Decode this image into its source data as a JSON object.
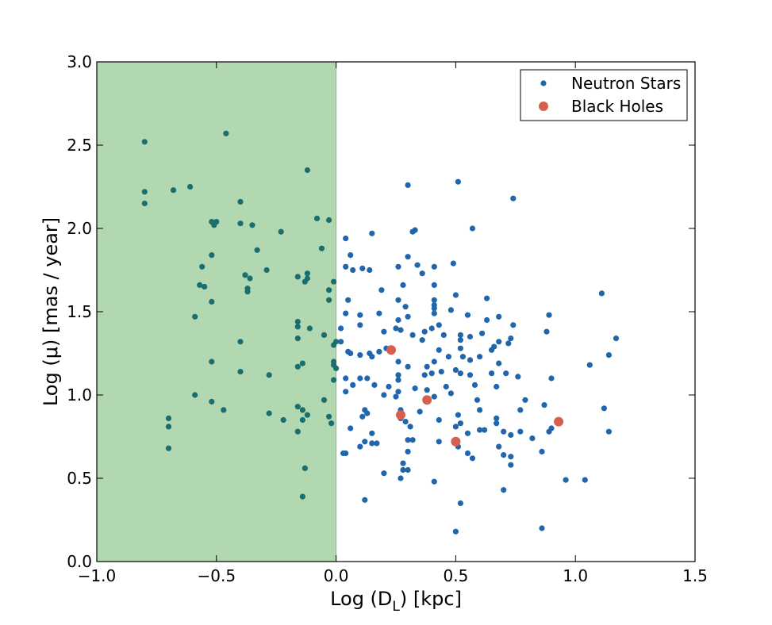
{
  "chart_data": {
    "type": "scatter",
    "title": "",
    "xlabel": "Log (D",
    "xlabel_sub": "L",
    "xlabel_tail": ") [kpc]",
    "ylabel": "Log (μ) [mas / year]",
    "xlim": [
      -1.0,
      1.5
    ],
    "ylim": [
      0.0,
      3.0
    ],
    "xticks": [
      -1.0,
      -0.5,
      0.0,
      0.5,
      1.0,
      1.5
    ],
    "xtick_labels": [
      "−1.0",
      "−0.5",
      "0.0",
      "0.5",
      "1.0",
      "1.5"
    ],
    "yticks": [
      0.0,
      0.5,
      1.0,
      1.5,
      2.0,
      2.5,
      3.0
    ],
    "ytick_labels": [
      "0.0",
      "0.5",
      "1.0",
      "1.5",
      "2.0",
      "2.5",
      "3.0"
    ],
    "grid": false,
    "legend_position": "top-right",
    "shaded_region": {
      "x": [
        -1.0,
        0.0
      ],
      "color": "#b2d8b2"
    },
    "colors": {
      "neutron": "#2166ac",
      "blackhole": "#d6604d",
      "shaded_point": "#1a6e6e"
    },
    "series": [
      {
        "name": "Neutron Stars",
        "marker": "circle-small",
        "points": [
          [
            -0.8,
            2.52
          ],
          [
            -0.8,
            2.22
          ],
          [
            -0.8,
            2.15
          ],
          [
            -0.68,
            2.23
          ],
          [
            -0.61,
            2.25
          ],
          [
            -0.46,
            2.57
          ],
          [
            -0.12,
            2.35
          ],
          [
            -0.4,
            2.16
          ],
          [
            -0.52,
            2.04
          ],
          [
            -0.5,
            2.04
          ],
          [
            -0.51,
            2.02
          ],
          [
            -0.4,
            2.03
          ],
          [
            -0.35,
            2.02
          ],
          [
            -0.23,
            1.98
          ],
          [
            -0.08,
            2.06
          ],
          [
            -0.03,
            2.05
          ],
          [
            -0.06,
            1.88
          ],
          [
            -0.33,
            1.87
          ],
          [
            -0.52,
            1.84
          ],
          [
            -0.56,
            1.77
          ],
          [
            -0.29,
            1.75
          ],
          [
            -0.38,
            1.72
          ],
          [
            -0.36,
            1.7
          ],
          [
            -0.16,
            1.71
          ],
          [
            -0.12,
            1.73
          ],
          [
            -0.12,
            1.7
          ],
          [
            -0.13,
            1.68
          ],
          [
            -0.01,
            1.68
          ],
          [
            -0.03,
            1.63
          ],
          [
            -0.57,
            1.66
          ],
          [
            -0.55,
            1.65
          ],
          [
            -0.37,
            1.64
          ],
          [
            -0.37,
            1.62
          ],
          [
            -0.03,
            1.57
          ],
          [
            -0.52,
            1.56
          ],
          [
            -0.59,
            1.47
          ],
          [
            -0.16,
            1.44
          ],
          [
            -0.16,
            1.41
          ],
          [
            -0.11,
            1.4
          ],
          [
            -0.16,
            1.34
          ],
          [
            -0.05,
            1.36
          ],
          [
            -0.4,
            1.32
          ],
          [
            -0.01,
            1.3
          ],
          [
            0.0,
            1.32
          ],
          [
            -0.52,
            1.2
          ],
          [
            -0.14,
            1.19
          ],
          [
            -0.16,
            1.17
          ],
          [
            -0.01,
            1.2
          ],
          [
            -0.01,
            1.18
          ],
          [
            -0.4,
            1.14
          ],
          [
            -0.28,
            1.12
          ],
          [
            0.0,
            1.16
          ],
          [
            -0.01,
            1.09
          ],
          [
            -0.59,
            1.0
          ],
          [
            -0.52,
            0.96
          ],
          [
            -0.47,
            0.91
          ],
          [
            -0.16,
            0.93
          ],
          [
            -0.14,
            0.91
          ],
          [
            -0.12,
            0.88
          ],
          [
            -0.14,
            0.85
          ],
          [
            -0.05,
            0.97
          ],
          [
            -0.03,
            0.87
          ],
          [
            -0.02,
            0.83
          ],
          [
            -0.22,
            0.85
          ],
          [
            -0.28,
            0.89
          ],
          [
            -0.7,
            0.86
          ],
          [
            -0.7,
            0.81
          ],
          [
            -0.7,
            0.68
          ],
          [
            -0.16,
            0.78
          ],
          [
            -0.13,
            0.56
          ],
          [
            -0.14,
            0.39
          ],
          [
            0.51,
            2.28
          ],
          [
            0.74,
            2.18
          ],
          [
            0.3,
            2.26
          ],
          [
            0.57,
            2.0
          ],
          [
            0.33,
            1.99
          ],
          [
            0.32,
            1.98
          ],
          [
            0.15,
            1.97
          ],
          [
            0.04,
            1.94
          ],
          [
            0.06,
            1.84
          ],
          [
            0.3,
            1.83
          ],
          [
            0.34,
            1.78
          ],
          [
            0.49,
            1.79
          ],
          [
            0.04,
            1.77
          ],
          [
            0.07,
            1.75
          ],
          [
            0.11,
            1.76
          ],
          [
            0.14,
            1.75
          ],
          [
            0.26,
            1.77
          ],
          [
            0.36,
            1.73
          ],
          [
            0.41,
            1.77
          ],
          [
            0.41,
            1.66
          ],
          [
            0.28,
            1.66
          ],
          [
            0.19,
            1.63
          ],
          [
            0.5,
            1.6
          ],
          [
            0.05,
            1.57
          ],
          [
            0.26,
            1.57
          ],
          [
            0.41,
            1.57
          ],
          [
            0.41,
            1.54
          ],
          [
            0.41,
            1.52
          ],
          [
            0.41,
            1.49
          ],
          [
            0.29,
            1.53
          ],
          [
            0.63,
            1.58
          ],
          [
            0.48,
            1.51
          ],
          [
            0.55,
            1.48
          ],
          [
            0.68,
            1.47
          ],
          [
            0.89,
            1.48
          ],
          [
            0.04,
            1.49
          ],
          [
            0.1,
            1.48
          ],
          [
            0.18,
            1.49
          ],
          [
            0.26,
            1.45
          ],
          [
            0.3,
            1.47
          ],
          [
            0.43,
            1.42
          ],
          [
            0.4,
            1.4
          ],
          [
            0.37,
            1.38
          ],
          [
            0.52,
            1.36
          ],
          [
            0.61,
            1.37
          ],
          [
            0.63,
            1.45
          ],
          [
            0.74,
            1.42
          ],
          [
            0.02,
            1.4
          ],
          [
            0.1,
            1.42
          ],
          [
            0.2,
            1.38
          ],
          [
            0.25,
            1.4
          ],
          [
            0.27,
            1.39
          ],
          [
            0.32,
            1.36
          ],
          [
            0.36,
            1.33
          ],
          [
            0.45,
            1.36
          ],
          [
            0.52,
            1.33
          ],
          [
            0.56,
            1.35
          ],
          [
            0.68,
            1.32
          ],
          [
            0.73,
            1.34
          ],
          [
            0.72,
            1.31
          ],
          [
            0.88,
            1.38
          ],
          [
            1.17,
            1.34
          ],
          [
            1.11,
            1.61
          ],
          [
            1.14,
            1.24
          ],
          [
            1.06,
            1.18
          ],
          [
            0.02,
            1.32
          ],
          [
            0.05,
            1.26
          ],
          [
            0.06,
            1.25
          ],
          [
            0.1,
            1.24
          ],
          [
            0.14,
            1.25
          ],
          [
            0.15,
            1.23
          ],
          [
            0.18,
            1.26
          ],
          [
            0.21,
            1.28
          ],
          [
            0.26,
            1.2
          ],
          [
            0.3,
            1.17
          ],
          [
            0.38,
            1.17
          ],
          [
            0.41,
            1.2
          ],
          [
            0.43,
            1.27
          ],
          [
            0.47,
            1.23
          ],
          [
            0.52,
            1.28
          ],
          [
            0.53,
            1.23
          ],
          [
            0.56,
            1.21
          ],
          [
            0.6,
            1.23
          ],
          [
            0.65,
            1.27
          ],
          [
            0.66,
            1.29
          ],
          [
            0.68,
            1.19
          ],
          [
            0.04,
            1.1
          ],
          [
            0.07,
            1.06
          ],
          [
            0.1,
            1.1
          ],
          [
            0.13,
            1.1
          ],
          [
            0.16,
            1.06
          ],
          [
            0.22,
            1.05
          ],
          [
            0.26,
            1.09
          ],
          [
            0.26,
            1.12
          ],
          [
            0.33,
            1.04
          ],
          [
            0.37,
            1.12
          ],
          [
            0.4,
            1.13
          ],
          [
            0.44,
            1.14
          ],
          [
            0.5,
            1.15
          ],
          [
            0.52,
            1.13
          ],
          [
            0.56,
            1.12
          ],
          [
            0.58,
            1.06
          ],
          [
            0.65,
            1.13
          ],
          [
            0.67,
            1.05
          ],
          [
            0.71,
            1.13
          ],
          [
            0.76,
            1.11
          ],
          [
            0.9,
            1.1
          ],
          [
            0.04,
            1.02
          ],
          [
            0.2,
            1.0
          ],
          [
            0.25,
            0.99
          ],
          [
            0.26,
            1.02
          ],
          [
            0.38,
            1.03
          ],
          [
            0.41,
            0.99
          ],
          [
            0.46,
            1.05
          ],
          [
            0.48,
            1.01
          ],
          [
            0.59,
            0.97
          ],
          [
            0.79,
            0.97
          ],
          [
            0.87,
            0.94
          ],
          [
            0.77,
            0.91
          ],
          [
            0.6,
            0.91
          ],
          [
            0.51,
            0.88
          ],
          [
            0.35,
            0.9
          ],
          [
            0.27,
            0.91
          ],
          [
            0.12,
            0.91
          ],
          [
            0.13,
            0.89
          ],
          [
            0.11,
            0.87
          ],
          [
            0.27,
            0.86
          ],
          [
            0.29,
            0.84
          ],
          [
            0.31,
            0.81
          ],
          [
            0.43,
            0.85
          ],
          [
            0.5,
            0.81
          ],
          [
            0.52,
            0.83
          ],
          [
            0.55,
            0.77
          ],
          [
            0.6,
            0.79
          ],
          [
            0.62,
            0.79
          ],
          [
            0.67,
            0.86
          ],
          [
            0.67,
            0.83
          ],
          [
            0.7,
            0.78
          ],
          [
            0.73,
            0.76
          ],
          [
            0.77,
            0.78
          ],
          [
            0.82,
            0.74
          ],
          [
            0.89,
            0.78
          ],
          [
            0.9,
            0.8
          ],
          [
            1.12,
            0.92
          ],
          [
            1.14,
            0.78
          ],
          [
            0.06,
            0.8
          ],
          [
            0.15,
            0.77
          ],
          [
            0.15,
            0.71
          ],
          [
            0.17,
            0.71
          ],
          [
            0.1,
            0.69
          ],
          [
            0.12,
            0.72
          ],
          [
            0.3,
            0.73
          ],
          [
            0.32,
            0.73
          ],
          [
            0.43,
            0.72
          ],
          [
            0.51,
            0.69
          ],
          [
            0.55,
            0.65
          ],
          [
            0.57,
            0.62
          ],
          [
            0.68,
            0.69
          ],
          [
            0.7,
            0.64
          ],
          [
            0.73,
            0.63
          ],
          [
            0.73,
            0.58
          ],
          [
            0.86,
            0.66
          ],
          [
            0.04,
            0.65
          ],
          [
            0.03,
            0.65
          ],
          [
            0.28,
            0.59
          ],
          [
            0.3,
            0.66
          ],
          [
            0.28,
            0.55
          ],
          [
            0.3,
            0.55
          ],
          [
            0.2,
            0.53
          ],
          [
            0.27,
            0.5
          ],
          [
            0.41,
            0.48
          ],
          [
            0.7,
            0.43
          ],
          [
            0.96,
            0.49
          ],
          [
            1.04,
            0.49
          ],
          [
            0.12,
            0.37
          ],
          [
            0.52,
            0.35
          ],
          [
            0.86,
            0.2
          ],
          [
            0.5,
            0.18
          ]
        ]
      },
      {
        "name": "Black Holes",
        "marker": "circle-large",
        "points": [
          [
            0.23,
            1.27
          ],
          [
            0.27,
            0.88
          ],
          [
            0.38,
            0.97
          ],
          [
            0.5,
            0.72
          ],
          [
            0.93,
            0.84
          ]
        ]
      }
    ]
  }
}
